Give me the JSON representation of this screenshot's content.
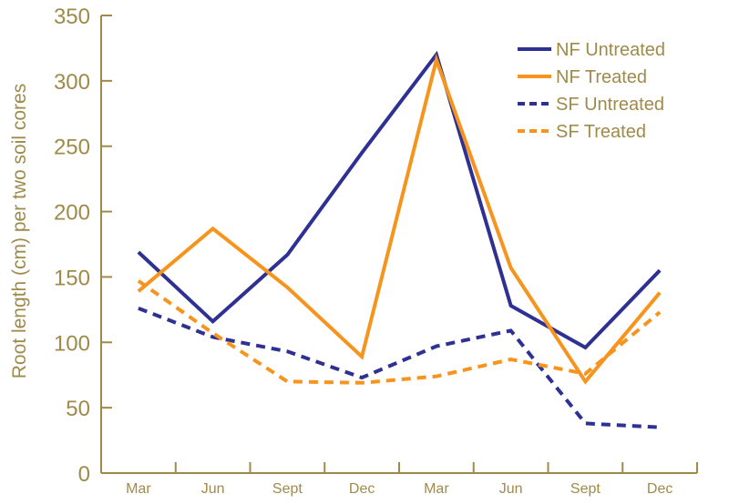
{
  "chart_data": {
    "type": "line",
    "title": "",
    "xlabel": "",
    "ylabel": "Root length (cm) per two soil cores",
    "categories": [
      "Mar",
      "Jun",
      "Sept",
      "Dec",
      "Mar",
      "Jun",
      "Sept",
      "Dec"
    ],
    "ylim": [
      0,
      350
    ],
    "yticks": [
      0,
      50,
      100,
      150,
      200,
      250,
      300,
      350
    ],
    "grid": false,
    "legend_position": "top-right",
    "axis_color": "#a08a4a",
    "series": [
      {
        "name": "NF Untreated",
        "color": "#2e3192",
        "dash": "solid",
        "values": [
          169,
          116,
          167,
          245,
          320,
          128,
          96,
          155
        ]
      },
      {
        "name": "NF Treated",
        "color": "#f7941d",
        "dash": "solid",
        "values": [
          139,
          187,
          142,
          89,
          316,
          157,
          70,
          138
        ]
      },
      {
        "name": "SF Untreated",
        "color": "#2e3192",
        "dash": "dashed",
        "values": [
          126,
          104,
          93,
          73,
          97,
          109,
          38,
          35
        ]
      },
      {
        "name": "SF Treated",
        "color": "#f7941d",
        "dash": "dashed",
        "values": [
          147,
          107,
          70,
          69,
          74,
          87,
          76,
          123
        ]
      }
    ]
  }
}
